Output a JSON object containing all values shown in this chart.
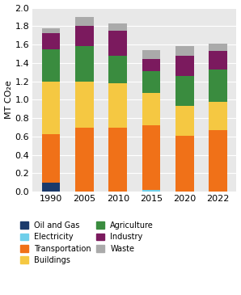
{
  "years": [
    "1990",
    "2005",
    "2010",
    "2015",
    "2020",
    "2022"
  ],
  "sectors_order": [
    "Oil and Gas",
    "Electricity",
    "Transportation",
    "Buildings",
    "Agriculture",
    "Industry",
    "Waste"
  ],
  "colors": {
    "Oil and Gas": "#1b3a6b",
    "Electricity": "#6ecfea",
    "Transportation": "#f07118",
    "Buildings": "#f5c842",
    "Agriculture": "#3a8c3f",
    "Industry": "#7b1a5e",
    "Waste": "#aaaaaa"
  },
  "data": {
    "Oil and Gas": [
      0.1,
      0.0,
      0.0,
      0.0,
      0.0,
      0.0
    ],
    "Electricity": [
      0.0,
      0.0,
      0.0,
      0.02,
      0.0,
      0.0
    ],
    "Transportation": [
      0.53,
      0.7,
      0.7,
      0.7,
      0.61,
      0.67
    ],
    "Buildings": [
      0.57,
      0.5,
      0.48,
      0.35,
      0.32,
      0.31
    ],
    "Agriculture": [
      0.35,
      0.38,
      0.3,
      0.24,
      0.33,
      0.35
    ],
    "Industry": [
      0.17,
      0.22,
      0.27,
      0.13,
      0.22,
      0.2
    ],
    "Waste": [
      0.06,
      0.1,
      0.08,
      0.1,
      0.1,
      0.08
    ]
  },
  "ylabel": "MT CO₂e",
  "ylim": [
    0.0,
    2.0
  ],
  "yticks": [
    0.0,
    0.2,
    0.4,
    0.6,
    0.8,
    1.0,
    1.2,
    1.4,
    1.6,
    1.8,
    2.0
  ],
  "background_color": "#e8e8e8",
  "bar_width": 0.55,
  "legend_order": [
    "Oil and Gas",
    "Electricity",
    "Transportation",
    "Buildings",
    "Agriculture",
    "Industry",
    "Waste"
  ],
  "legend_ncol": 2,
  "fig_width": 2.98,
  "fig_height": 3.65,
  "dpi": 100
}
